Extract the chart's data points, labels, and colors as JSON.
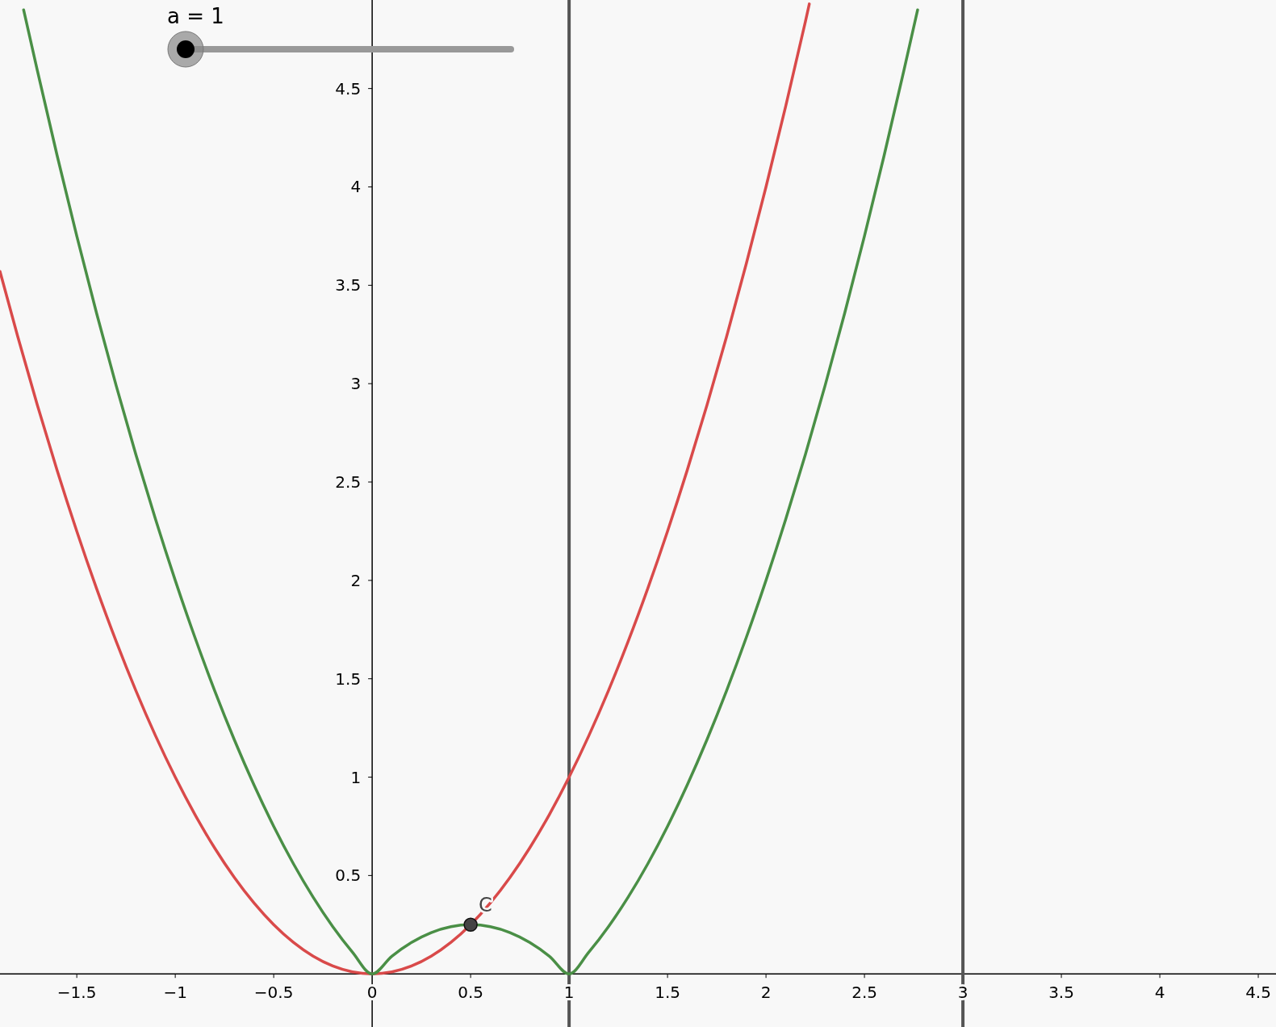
{
  "chart_data": {
    "type": "line",
    "xlim": [
      -1.89,
      4.59
    ],
    "ylim": [
      -0.27,
      4.95
    ],
    "xticks": [
      {
        "value": -1.5,
        "label": "−1.5"
      },
      {
        "value": -1,
        "label": "−1"
      },
      {
        "value": -0.5,
        "label": "−0.5"
      },
      0,
      0.5,
      1,
      1.5,
      2,
      2.5,
      3,
      3.5,
      4,
      4.5
    ],
    "yticks": [
      0.5,
      1,
      1.5,
      2,
      2.5,
      3,
      3.5,
      4,
      4.5
    ],
    "grid": false,
    "series": [
      {
        "color": "#d94a4a",
        "x": [
          -1.89,
          -1.8,
          -1.7,
          -1.6,
          -1.5,
          -1.4,
          -1.3,
          -1.2,
          -1.1,
          -1,
          -0.9,
          -0.8,
          -0.7,
          -0.6,
          -0.5,
          -0.4,
          -0.3,
          -0.2,
          -0.1,
          0,
          0.1,
          0.2,
          0.3,
          0.4,
          0.5,
          0.6,
          0.7,
          0.8,
          0.9,
          1,
          1.1,
          1.2,
          1.3,
          1.4,
          1.5,
          1.6,
          1.7,
          1.8,
          1.9,
          2,
          2.1,
          2.2,
          2.22
        ],
        "values": [
          3.57,
          3.24,
          2.89,
          2.56,
          2.25,
          1.96,
          1.69,
          1.44,
          1.21,
          1,
          0.81,
          0.64,
          0.49,
          0.36,
          0.25,
          0.16,
          0.09,
          0.04,
          0.01,
          0,
          0.01,
          0.04,
          0.09,
          0.16,
          0.25,
          0.36,
          0.49,
          0.64,
          0.81,
          1,
          1.21,
          1.44,
          1.69,
          1.96,
          2.25,
          2.56,
          2.89,
          3.24,
          3.61,
          4,
          4.41,
          4.84,
          4.93
        ]
      },
      {
        "color": "#4a8f46",
        "x": [
          -1.77,
          -1.7,
          -1.6,
          -1.5,
          -1.4,
          -1.3,
          -1.2,
          -1.1,
          -1,
          -0.9,
          -0.8,
          -0.7,
          -0.6,
          -0.5,
          -0.4,
          -0.3,
          -0.2,
          -0.1,
          0,
          0.1,
          0.2,
          0.3,
          0.4,
          0.5,
          0.6,
          0.7,
          0.8,
          0.9,
          1,
          1.1,
          1.2,
          1.3,
          1.4,
          1.5,
          1.6,
          1.7,
          1.8,
          1.9,
          2,
          2.1,
          2.2,
          2.3,
          2.4,
          2.5,
          2.6,
          2.7,
          2.77
        ],
        "values": [
          4.9,
          4.59,
          4.16,
          3.75,
          3.36,
          2.99,
          2.64,
          2.31,
          2,
          1.71,
          1.44,
          1.19,
          0.96,
          0.75,
          0.56,
          0.39,
          0.24,
          0.11,
          0,
          0.09,
          0.16,
          0.21,
          0.24,
          0.25,
          0.24,
          0.21,
          0.16,
          0.09,
          0,
          0.11,
          0.24,
          0.39,
          0.56,
          0.75,
          0.96,
          1.19,
          1.44,
          1.71,
          2,
          2.31,
          2.64,
          2.99,
          3.36,
          3.75,
          4.16,
          4.59,
          4.9
        ]
      },
      {
        "type": "scatter",
        "name": "C",
        "color": "#444444",
        "marker": "circle",
        "x": [
          0.5
        ],
        "values": [
          0.25
        ]
      }
    ],
    "ref_lines": [
      {
        "axis": "x",
        "value": 1,
        "color": "#555555"
      },
      {
        "axis": "x",
        "value": 3,
        "color": "#555555"
      }
    ],
    "annotations": [
      "a = 1"
    ]
  }
}
